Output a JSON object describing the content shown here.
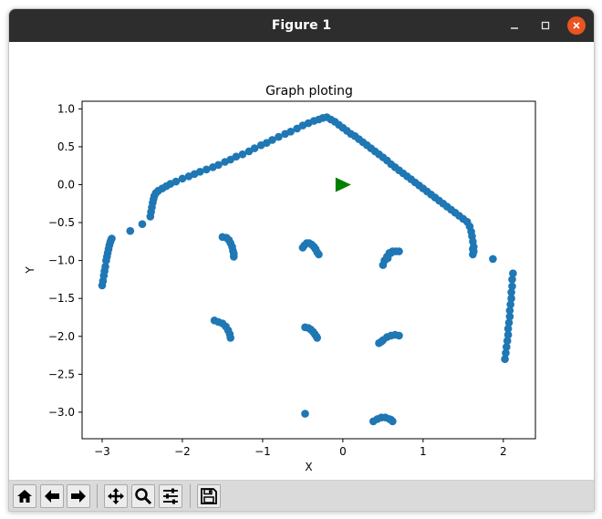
{
  "window": {
    "title": "Figure 1"
  },
  "chart_data": {
    "type": "scatter",
    "title": "Graph ploting",
    "xlabel": "X",
    "ylabel": "Y",
    "xlim": [
      -3.25,
      2.4
    ],
    "ylim": [
      -3.35,
      1.1
    ],
    "xticks": [
      -3,
      -2,
      -1,
      0,
      1,
      2
    ],
    "yticks": [
      1.0,
      0.5,
      0.0,
      -0.5,
      -1.0,
      -1.5,
      -2.0,
      -2.5,
      -3.0
    ],
    "xtick_labels": [
      "−3",
      "−2",
      "−1",
      "0",
      "1",
      "2"
    ],
    "ytick_labels": [
      "1.0",
      "0.5",
      "0.0",
      "−0.5",
      "−1.0",
      "−1.5",
      "−2.0",
      "−2.5",
      "−3.0"
    ],
    "grid": false,
    "point_color": "#1f77b4",
    "marker": {
      "x": 0.0,
      "y": 0.0,
      "color": "#008000",
      "shape": "right-triangle"
    },
    "series": [
      {
        "values_x": [
          -3.0,
          -2.99,
          -2.98,
          -2.97,
          -2.96,
          -2.95,
          -2.94,
          -2.93,
          -2.92,
          -2.91,
          -2.9,
          -2.89,
          -2.88,
          -2.65,
          -2.5,
          -2.4,
          -2.39,
          -2.38,
          -2.37,
          -2.36,
          -2.35,
          -2.33,
          -2.3,
          -2.25,
          -2.2,
          -2.15,
          -2.08,
          -2.0,
          -1.92,
          -1.85,
          -1.78,
          -1.7,
          -1.62,
          -1.55,
          -1.47,
          -1.4,
          -1.33,
          -1.25,
          -1.17,
          -1.1,
          -1.02,
          -0.95,
          -0.88,
          -0.8,
          -0.72,
          -0.65,
          -0.57,
          -0.5,
          -0.43,
          -0.36,
          -0.3,
          -0.25,
          -0.2,
          -0.15,
          -0.1,
          -0.05,
          0.0,
          0.05,
          0.1,
          0.15,
          0.2,
          0.25,
          0.3,
          0.35,
          0.4,
          0.45,
          0.5,
          0.55,
          0.6,
          0.65,
          0.7,
          0.75,
          0.8,
          0.85,
          0.9,
          0.95,
          1.0,
          1.05,
          1.1,
          1.15,
          1.2,
          1.25,
          1.3,
          1.35,
          1.4,
          1.45,
          1.5,
          1.55,
          1.58,
          1.6,
          1.61,
          1.62,
          1.63,
          1.63,
          1.62,
          1.62,
          1.87,
          2.02,
          2.03,
          2.04,
          2.05,
          2.06,
          2.06,
          2.07,
          2.08,
          2.08,
          2.09,
          2.1,
          2.1,
          2.11,
          2.11,
          2.12,
          -1.5,
          -1.45,
          -1.42,
          -1.4,
          -1.38,
          -1.37,
          -1.36,
          -1.36,
          -0.5,
          -0.48,
          -0.45,
          -0.42,
          -0.39,
          -0.36,
          -0.34,
          -0.32,
          -0.3,
          0.5,
          0.52,
          0.55,
          0.58,
          0.62,
          0.66,
          0.7,
          0.6,
          0.56,
          -1.6,
          -1.55,
          -1.5,
          -1.46,
          -1.43,
          -1.41,
          -1.4,
          -0.47,
          -0.43,
          -0.4,
          -0.37,
          -0.35,
          -0.33,
          -0.32,
          0.45,
          0.5,
          0.55,
          0.6,
          0.65,
          0.7,
          0.48,
          -0.47,
          0.38,
          0.43,
          0.48,
          0.53,
          0.58,
          0.62,
          0.6
        ],
        "values_y": [
          -1.33,
          -1.27,
          -1.2,
          -1.14,
          -1.08,
          -1.0,
          -0.95,
          -0.9,
          -0.85,
          -0.8,
          -0.76,
          -0.73,
          -0.71,
          -0.61,
          -0.52,
          -0.42,
          -0.36,
          -0.3,
          -0.24,
          -0.19,
          -0.15,
          -0.11,
          -0.08,
          -0.05,
          -0.02,
          0.01,
          0.04,
          0.08,
          0.11,
          0.14,
          0.17,
          0.2,
          0.23,
          0.26,
          0.3,
          0.33,
          0.37,
          0.4,
          0.44,
          0.48,
          0.52,
          0.55,
          0.59,
          0.63,
          0.67,
          0.7,
          0.74,
          0.78,
          0.81,
          0.84,
          0.86,
          0.88,
          0.89,
          0.86,
          0.83,
          0.79,
          0.75,
          0.71,
          0.67,
          0.64,
          0.6,
          0.56,
          0.52,
          0.48,
          0.44,
          0.4,
          0.36,
          0.32,
          0.27,
          0.23,
          0.19,
          0.15,
          0.11,
          0.07,
          0.03,
          -0.01,
          -0.05,
          -0.09,
          -0.13,
          -0.17,
          -0.21,
          -0.25,
          -0.29,
          -0.33,
          -0.37,
          -0.41,
          -0.45,
          -0.49,
          -0.55,
          -0.62,
          -0.68,
          -0.75,
          -0.82,
          -0.88,
          -0.92,
          -0.85,
          -0.98,
          -2.3,
          -2.22,
          -2.14,
          -2.06,
          -1.98,
          -1.9,
          -1.82,
          -1.74,
          -1.66,
          -1.58,
          -1.5,
          -1.42,
          -1.34,
          -1.25,
          -1.17,
          -0.69,
          -0.7,
          -0.73,
          -0.77,
          -0.82,
          -0.87,
          -0.91,
          -0.95,
          -0.83,
          -0.8,
          -0.77,
          -0.77,
          -0.79,
          -0.82,
          -0.85,
          -0.89,
          -0.92,
          -1.06,
          -1.0,
          -0.95,
          -0.9,
          -0.88,
          -0.88,
          -0.88,
          -0.9,
          -0.97,
          -1.79,
          -1.81,
          -1.83,
          -1.87,
          -1.92,
          -1.97,
          -2.02,
          -1.88,
          -1.89,
          -1.91,
          -1.94,
          -1.97,
          -2.0,
          -2.02,
          -2.09,
          -2.05,
          -2.01,
          -1.99,
          -1.98,
          -1.99,
          -2.07,
          -3.02,
          -3.12,
          -3.09,
          -3.07,
          -3.07,
          -3.09,
          -3.12,
          -3.1
        ]
      }
    ]
  },
  "toolbar": {
    "buttons": [
      {
        "name": "home-button",
        "icon": "home-icon"
      },
      {
        "name": "back-button",
        "icon": "arrow-left-icon"
      },
      {
        "name": "forward-button",
        "icon": "arrow-right-icon"
      },
      {
        "name": "pan-button",
        "icon": "move-icon"
      },
      {
        "name": "zoom-button",
        "icon": "magnifier-icon"
      },
      {
        "name": "configure-subplots-button",
        "icon": "sliders-icon"
      },
      {
        "name": "save-button",
        "icon": "floppy-disk-icon"
      }
    ]
  }
}
